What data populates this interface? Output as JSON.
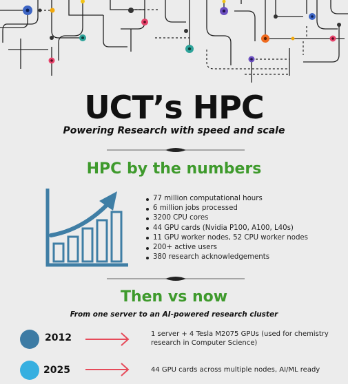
{
  "header": {
    "title": "UCT’s HPC",
    "subtitle": "Powering Research with speed and scale"
  },
  "numbers": {
    "heading": "HPC by the numbers",
    "icon": "bar-chart-growth-icon",
    "items": [
      "77 million computational hours",
      "6 million jobs processed",
      "3200 CPU cores",
      "44 GPU cards (Nvidia P100, A100, L40s)",
      "11 GPU worker nodes, 52 CPU worker nodes",
      "200+ active users",
      "380 research acknowledgements"
    ]
  },
  "timeline": {
    "heading": "Then vs now",
    "tagline": "From one server to an AI-powered research cluster",
    "entries": [
      {
        "year": "2012",
        "line1": "1 server + 4 Tesla M2075 GPUs (used for chemistry",
        "line2": "research in Computer Science)"
      },
      {
        "year": "2025",
        "line1": "44 GPU cards across multiple nodes, AI/ML ready",
        "line2": ""
      }
    ]
  },
  "colors": {
    "heading_green": "#3e9a2c",
    "chart_blue": "#3f7ea5",
    "dot_2012": "#3d7ba4",
    "dot_2025": "#36afe0",
    "arrow_red": "#e64b5a"
  }
}
